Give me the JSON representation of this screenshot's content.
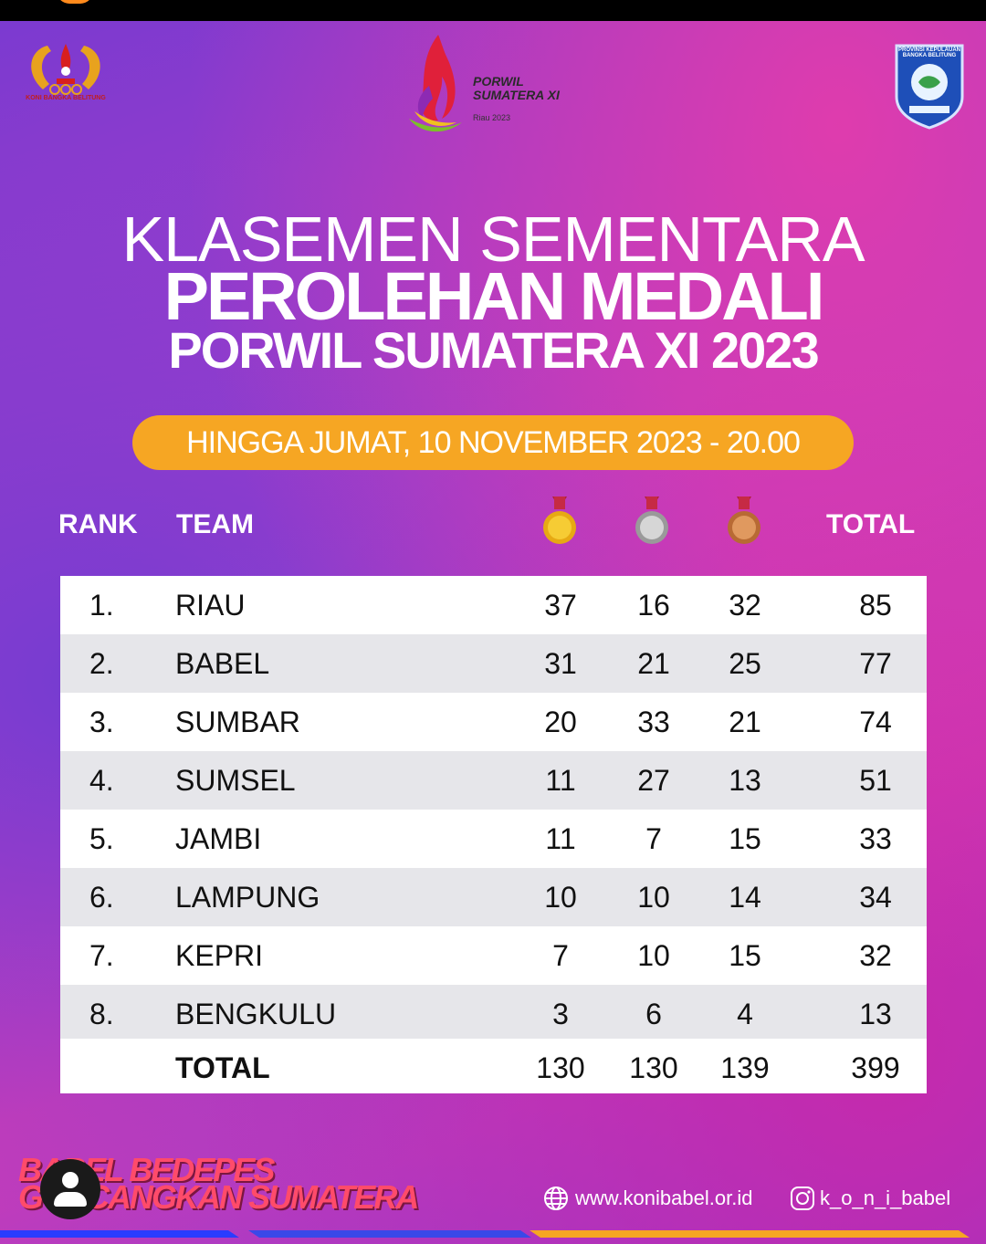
{
  "header": {
    "left_logo_caption": "KONI BANGKA BELITUNG",
    "center_logo_line1": "PORWIL",
    "center_logo_line2": "SUMATERA XI",
    "center_logo_line3": "Riau 2023",
    "right_logo_caption": "PROVINSI KEPULAUAN BANGKA BELITUNG"
  },
  "title": {
    "line1": "KLASEMEN SEMENTARA",
    "line2": "PEROLEHAN MEDALI",
    "line3": "PORWIL SUMATERA XI 2023"
  },
  "date_banner": "HINGGA JUMAT, 10 NOVEMBER 2023 - 20.00",
  "table": {
    "headers": {
      "rank": "RANK",
      "team": "TEAM",
      "total": "TOTAL"
    },
    "medal_icons": [
      "gold-medal-icon",
      "silver-medal-icon",
      "bronze-medal-icon"
    ],
    "rows": [
      {
        "rank": "1.",
        "team": "RIAU",
        "gold": "37",
        "silver": "16",
        "bronze": "32",
        "total": "85"
      },
      {
        "rank": "2.",
        "team": "BABEL",
        "gold": "31",
        "silver": "21",
        "bronze": "25",
        "total": "77"
      },
      {
        "rank": "3.",
        "team": "SUMBAR",
        "gold": "20",
        "silver": "33",
        "bronze": "21",
        "total": "74"
      },
      {
        "rank": "4.",
        "team": "SUMSEL",
        "gold": "11",
        "silver": "27",
        "bronze": "13",
        "total": "51"
      },
      {
        "rank": "5.",
        "team": "JAMBI",
        "gold": "11",
        "silver": "7",
        "bronze": "15",
        "total": "33"
      },
      {
        "rank": "6.",
        "team": "LAMPUNG",
        "gold": "10",
        "silver": "10",
        "bronze": "14",
        "total": "34"
      },
      {
        "rank": "7.",
        "team": "KEPRI",
        "gold": "7",
        "silver": "10",
        "bronze": "15",
        "total": "32"
      },
      {
        "rank": "8.",
        "team": "BENGKULU",
        "gold": "3",
        "silver": "6",
        "bronze": "4",
        "total": "13"
      }
    ],
    "totals": {
      "label": "TOTAL",
      "gold": "130",
      "silver": "130",
      "bronze": "139",
      "total": "399"
    }
  },
  "footer": {
    "slogan_line1": "BABEL BEDEPES",
    "slogan_line2": "GUNCANGKAN SUMATERA",
    "website": "www.konibabel.or.id",
    "instagram": "k_o_n_i_babel"
  },
  "colors": {
    "accent_orange": "#f6a623",
    "gold": "#f2c21a",
    "silver": "#c8c8c8",
    "bronze": "#d08a52",
    "slogan": "#ff4b6a"
  }
}
